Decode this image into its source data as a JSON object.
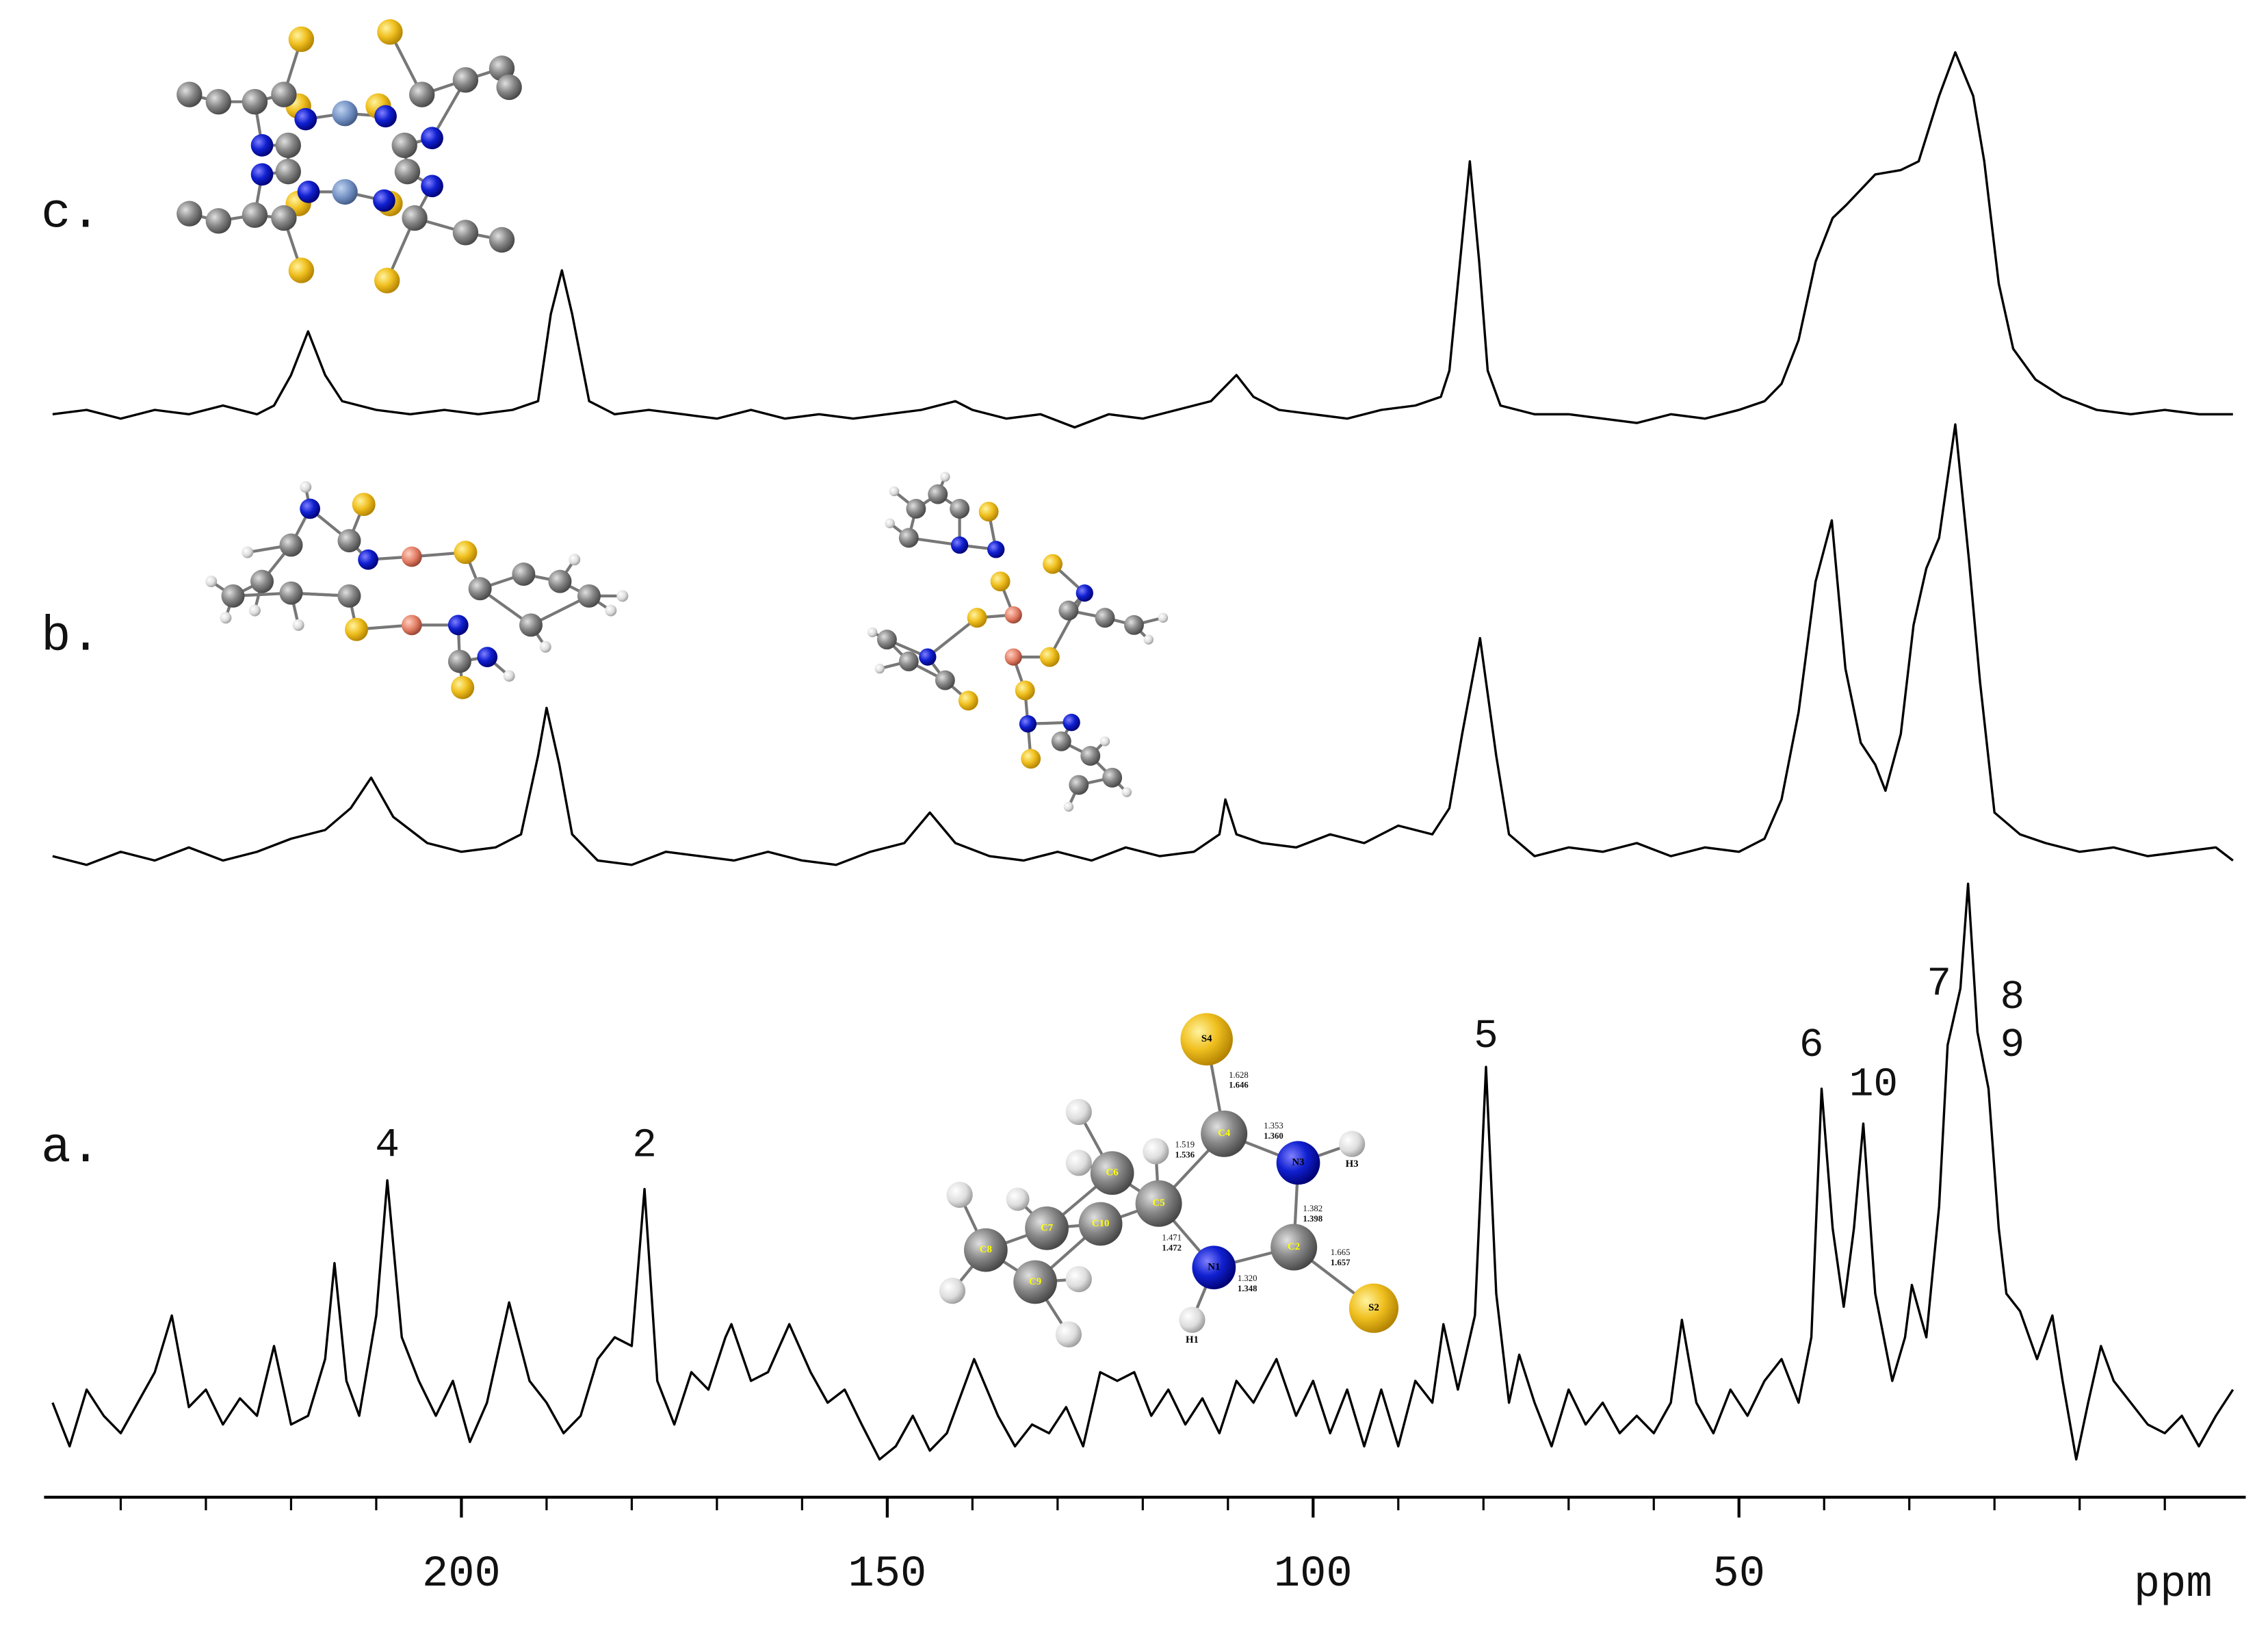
{
  "chart_data": {
    "type": "line",
    "x_label": "ppm",
    "xlim": [
      249,
      -9.5
    ],
    "xticks": [
      200,
      150,
      100,
      50
    ],
    "minor_xticks": [
      240,
      230,
      220,
      210,
      190,
      180,
      170,
      160,
      140,
      130,
      120,
      110,
      90,
      80,
      70,
      60,
      40,
      30,
      20,
      10,
      0
    ],
    "ylim": [
      0,
      140
    ],
    "color": "#000000",
    "series": [
      {
        "name": "a.",
        "x": [
          248,
          246,
          244,
          242,
          240,
          238,
          236,
          234,
          232,
          230,
          228,
          226,
          224,
          222,
          220,
          218,
          216,
          214.9,
          213.5,
          212,
          210,
          208.7,
          207,
          205,
          203,
          201,
          199,
          197,
          194.4,
          192,
          190,
          188,
          186,
          184,
          182,
          180,
          178.5,
          177,
          175,
          173,
          171,
          169,
          168.3,
          166,
          164,
          161.5,
          159,
          157,
          155,
          153,
          150.9,
          149,
          147,
          145,
          143,
          139.8,
          137,
          135,
          133,
          131,
          129,
          127,
          125,
          123,
          121,
          119,
          117,
          115,
          113,
          111,
          109,
          107,
          104.3,
          102,
          100,
          98,
          96,
          94,
          92,
          90,
          88,
          86,
          84.7,
          83,
          81,
          79.7,
          78.5,
          77,
          75.8,
          74,
          72,
          70,
          68,
          66,
          64,
          62,
          60,
          58,
          56.7,
          55,
          53,
          51,
          49,
          47,
          45,
          43,
          41.5,
          40.3,
          39,
          37.7,
          36.5,
          35.4,
          34,
          32,
          30.5,
          29.7,
          28,
          26.5,
          25.5,
          24,
          23.1,
          22,
          20.7,
          19.5,
          18.6,
          17,
          15,
          13.2,
          12,
          10.4,
          9,
          7.5,
          6,
          4,
          2,
          0,
          -2,
          -4,
          -6,
          -8
        ],
        "values": [
          15,
          5,
          18,
          12,
          8,
          15,
          22,
          35,
          14,
          18,
          10,
          16,
          12,
          28,
          10,
          12,
          25,
          47,
          20,
          12,
          35,
          66,
          30,
          20,
          12,
          20,
          6,
          15,
          38,
          20,
          15,
          8,
          12,
          25,
          30,
          28,
          64,
          20,
          10,
          22,
          18,
          30,
          33,
          20,
          22,
          33,
          22,
          15,
          18,
          10,
          2,
          5,
          12,
          4,
          8,
          25,
          12,
          5,
          10,
          8,
          14,
          5,
          22,
          20,
          22,
          12,
          18,
          10,
          16,
          8,
          20,
          15,
          25,
          12,
          20,
          8,
          18,
          5,
          18,
          5,
          20,
          15,
          33,
          18,
          35,
          92,
          40,
          15,
          26,
          15,
          5,
          18,
          10,
          15,
          8,
          12,
          8,
          15,
          34,
          15,
          8,
          18,
          12,
          20,
          25,
          15,
          30,
          87,
          55,
          37,
          55,
          79,
          40,
          20,
          30,
          42,
          30,
          60,
          97,
          110,
          134,
          100,
          87,
          55,
          40,
          36,
          25,
          35,
          20,
          2,
          15,
          28,
          20,
          15,
          10,
          8,
          12,
          5,
          12,
          18
        ],
        "annotations": [
          {
            "text": "4",
            "x": 208.7,
            "y": 74
          },
          {
            "text": "2",
            "x": 178.5,
            "y": 74
          },
          {
            "text": "5",
            "x": 79.7,
            "y": 99
          },
          {
            "text": "6",
            "x": 41.5,
            "y": 97
          },
          {
            "text": "10",
            "x": 34.2,
            "y": 88
          },
          {
            "text": "7",
            "x": 26.5,
            "y": 111
          },
          {
            "text": "8",
            "x": 17.9,
            "y": 108
          },
          {
            "text": "9",
            "x": 17.9,
            "y": 97
          }
        ]
      },
      {
        "name": "b.",
        "x": [
          248,
          244,
          240,
          236,
          232,
          228,
          224,
          220,
          216,
          213,
          210.6,
          208,
          204,
          200,
          196,
          193,
          191,
          190,
          188.5,
          187,
          184,
          180,
          176,
          172,
          168,
          164,
          160,
          156,
          152,
          148,
          145,
          142,
          138,
          134,
          130,
          126,
          122,
          118,
          114,
          111,
          110.3,
          109,
          106,
          102,
          98,
          94,
          90,
          86,
          84,
          82.5,
          80.4,
          78.5,
          77,
          74,
          70,
          66,
          62,
          58,
          54,
          50,
          47,
          45,
          43,
          41,
          39.1,
          37.5,
          35.7,
          34,
          32.8,
          31,
          29.5,
          28,
          26.5,
          24.6,
          23,
          21.7,
          20,
          17,
          14,
          10,
          6,
          2,
          -2,
          -6,
          -8
        ],
        "values": [
          7,
          5,
          8,
          6,
          9,
          6,
          8,
          11,
          13,
          18,
          25,
          16,
          10,
          8,
          9,
          12,
          30,
          41,
          28,
          12,
          6,
          5,
          8,
          7,
          6,
          8,
          6,
          5,
          8,
          10,
          17,
          10,
          7,
          6,
          8,
          6,
          9,
          7,
          8,
          12,
          20,
          12,
          10,
          9,
          12,
          10,
          14,
          12,
          18,
          35,
          57,
          30,
          12,
          7,
          9,
          8,
          10,
          7,
          9,
          8,
          11,
          20,
          40,
          70,
          84,
          50,
          33,
          28,
          22,
          35,
          60,
          73,
          80,
          106,
          75,
          47,
          17,
          12,
          10,
          8,
          9,
          7,
          8,
          9,
          6
        ]
      },
      {
        "name": "c.",
        "x": [
          248,
          244,
          240,
          236,
          232,
          228,
          224,
          222,
          220,
          218,
          216,
          214,
          210,
          206,
          202,
          198,
          194,
          191,
          189.5,
          188.2,
          187,
          185,
          182,
          178,
          174,
          170,
          166,
          162,
          158,
          154,
          150,
          146,
          142,
          140,
          136,
          132,
          128,
          124,
          120,
          116,
          112,
          109,
          107,
          104,
          100,
          96,
          92,
          88,
          85,
          84,
          83,
          81.6,
          80.5,
          79.5,
          78,
          74,
          70,
          66,
          62,
          58,
          54,
          50,
          47,
          45,
          43,
          41,
          39,
          37.4,
          34,
          31,
          28.9,
          26.5,
          24.6,
          22.5,
          21.2,
          19.5,
          17.8,
          15.2,
          12,
          8,
          4,
          0,
          -4,
          -8
        ],
        "values": [
          5,
          6,
          4,
          6,
          5,
          7,
          5,
          7,
          14,
          24,
          14,
          8,
          6,
          5,
          6,
          5,
          6,
          8,
          28,
          38,
          28,
          8,
          5,
          6,
          5,
          4,
          6,
          4,
          5,
          4,
          5,
          6,
          8,
          6,
          4,
          5,
          2,
          5,
          4,
          6,
          8,
          14,
          9,
          6,
          5,
          4,
          6,
          7,
          9,
          15,
          35,
          63,
          40,
          15,
          7,
          5,
          5,
          4,
          3,
          5,
          4,
          6,
          8,
          12,
          22,
          40,
          50,
          53,
          60,
          61,
          63,
          78,
          88,
          78,
          63,
          35,
          20,
          13,
          9,
          6,
          5,
          6,
          5,
          5
        ]
      }
    ],
    "structure_a": {
      "atoms": [
        "S4",
        "C4",
        "N3",
        "H3",
        "C2",
        "S2",
        "N1",
        "H1",
        "C5",
        "C6",
        "C10",
        "C7",
        "C8",
        "C9"
      ],
      "bond_lengths": [
        "1.628",
        "1.646",
        "1.353",
        "1.360",
        "1.382",
        "1.398",
        "1.519",
        "1.536",
        "1.471",
        "1.472",
        "1.320",
        "1.348",
        "1.665",
        "1.657"
      ]
    }
  }
}
